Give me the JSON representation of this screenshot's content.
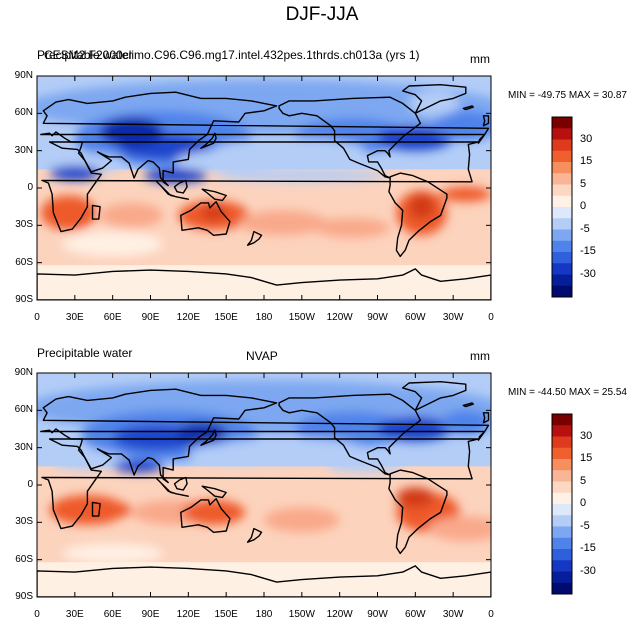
{
  "figure": {
    "title": "DJF-JJA"
  },
  "panels": [
    {
      "left_title": "Precipitable water",
      "center_title": "CESM2 F2000climo.C96.C96.mg17.intel.432pes.1thrds.ch013a (yrs 1)",
      "units": "mm",
      "stats": "MIN = -49.75  MAX =  30.87"
    },
    {
      "left_title": "Precipitable water",
      "center_title": "NVAP",
      "units": "mm",
      "stats": "MIN = -44.50  MAX =  25.54"
    }
  ],
  "axes": {
    "lat_ticks": [
      "90N",
      "60N",
      "30N",
      "0",
      "30S",
      "60S",
      "90S"
    ],
    "lon_ticks": [
      "0",
      "30E",
      "60E",
      "90E",
      "120E",
      "150E",
      "180",
      "150W",
      "120W",
      "90W",
      "60W",
      "30W",
      "0"
    ]
  },
  "colorbar": {
    "labels": [
      "30",
      "15",
      "5",
      "0",
      "-5",
      "-15",
      "-30"
    ],
    "colors": [
      "#7a0000",
      "#b80f0f",
      "#de3a1e",
      "#f0602e",
      "#f78e5e",
      "#fab596",
      "#fcd8c3",
      "#fff1e6",
      "#dde9fb",
      "#b3cdf7",
      "#7da7f0",
      "#5083ea",
      "#2f5fdd",
      "#1636c4",
      "#061e9c",
      "#000b6e"
    ]
  },
  "map_colors": {
    "ocean": "#fcd3bd",
    "blue_light": "#b3cdf7",
    "blue_mid": "#7da7f0",
    "blue": "#5083ea",
    "blue_deep": "#1f44cc",
    "blue_dark": "#0d2ba9",
    "red_light": "#f9a98a",
    "red": "#ee5a2c",
    "red_deep": "#d23a18",
    "pale": "#fff0e4"
  }
}
